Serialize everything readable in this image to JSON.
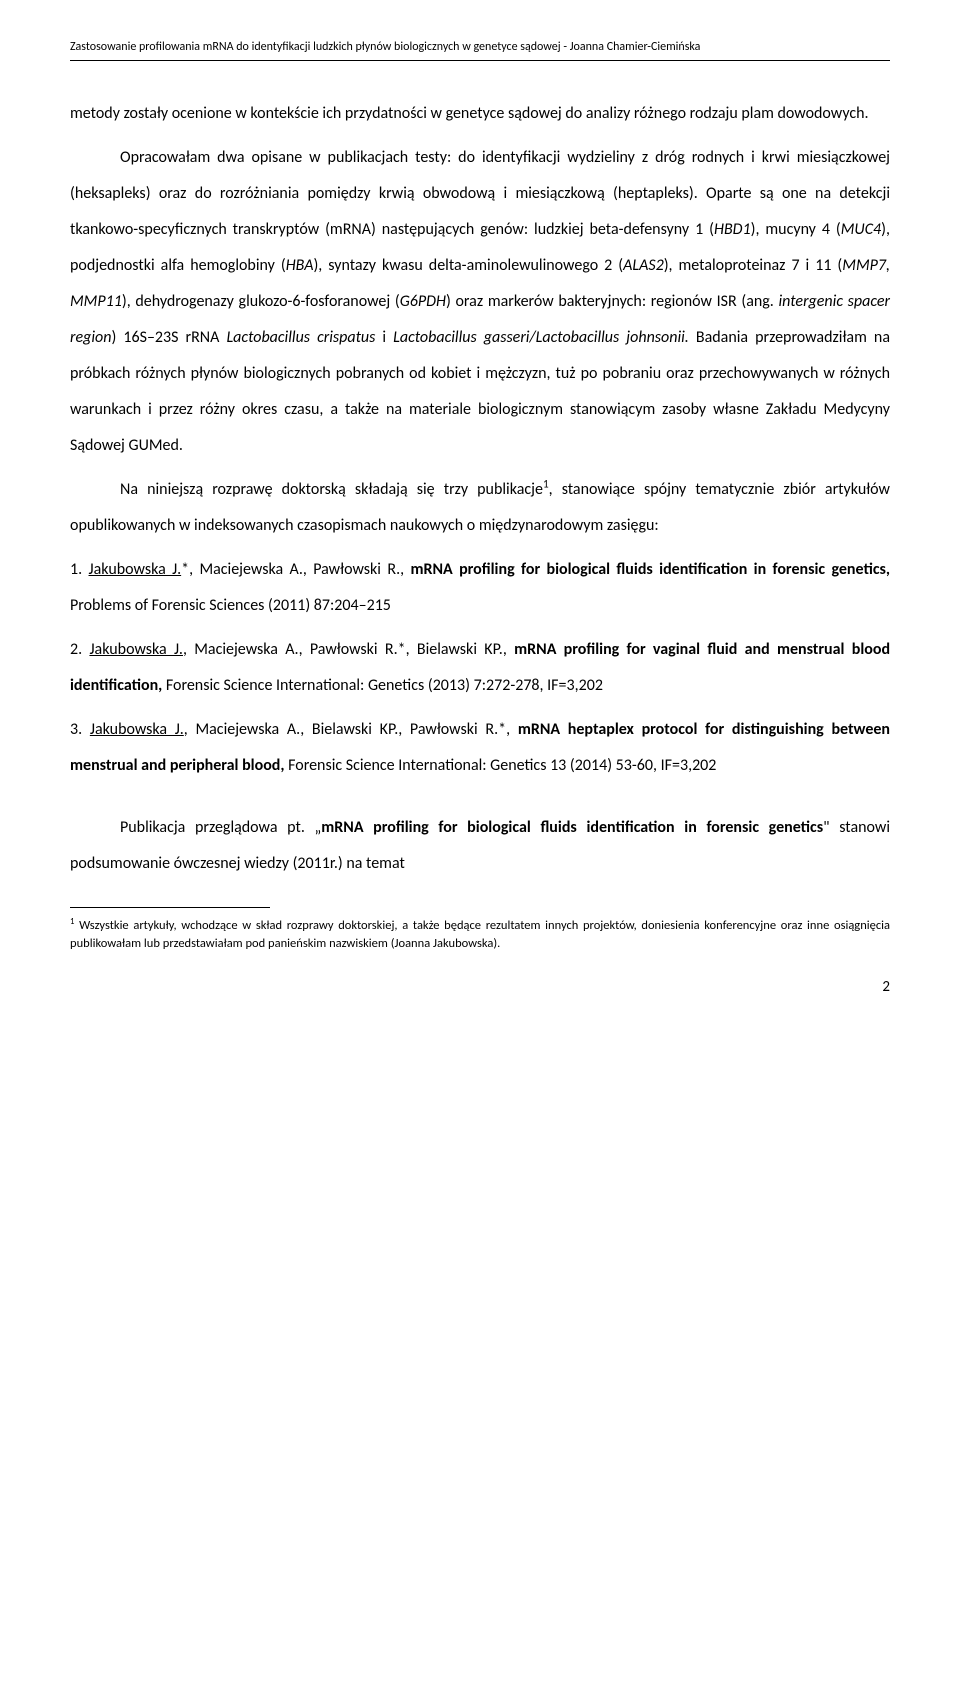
{
  "header": {
    "text": "Zastosowanie profilowania mRNA do identyfikacji ludzkich płynów biologicznych w genetyce sądowej - Joanna Chamier-Ciemińska"
  },
  "paragraphs": {
    "p1_part1": "metody zostały ocenione w kontekście ich przydatności w genetyce sądowej do analizy różnego rodzaju plam dowodowych.",
    "p2_part1": "Opracowałam dwa opisane w publikacjach testy: do identyfikacji wydzieliny z dróg rodnych i krwi miesiączkowej (heksapleks) oraz do rozróżniania pomiędzy krwią obwodową i miesiączkową (heptapleks). Oparte są one na detekcji tkankowo-specyficznych transkryptów (mRNA) następujących genów: ludzkiej beta-defensyny 1 (",
    "p2_hbd1": "HBD1",
    "p2_part2": "), mucyny 4 (",
    "p2_muc4": "MUC4",
    "p2_part3": "), podjednostki alfa hemoglobiny (",
    "p2_hba": "HBA",
    "p2_part4": "), syntazy kwasu delta-aminolewulinowego 2 (",
    "p2_alas2": "ALAS2",
    "p2_part5": "), metaloproteinaz 7 i 11 (",
    "p2_mmp": "MMP7, MMP11",
    "p2_part6": "), dehydrogenazy glukozo-6-fosforanowej (",
    "p2_g6pdh": "G6PDH",
    "p2_part7": ") oraz markerów bakteryjnych: regionów ISR (ang. ",
    "p2_isr": "intergenic spacer region",
    "p2_part8": ") 16S–23S rRNA ",
    "p2_lacto1": "Lactobacillus crispatus",
    "p2_part9": " i ",
    "p2_lacto2": "Lactobacillus gasseri/Lactobacillus johnsonii.",
    "p2_part10": " Badania przeprowadziłam na próbkach różnych płynów biologicznych pobranych od kobiet i mężczyzn, tuż po pobraniu oraz przechowywanych w różnych warunkach i przez różny okres czasu, a także na materiale biologicznym stanowiącym zasoby własne Zakładu Medycyny Sądowej GUMed.",
    "p3_part1": "Na niniejszą rozprawę doktorską składają się trzy publikacje",
    "p3_part2": ", stanowiące spójny tematycznie zbiór artykułów opublikowanych w indeksowanych czasopismach naukowych o międzynarodowym zasięgu:",
    "ref1_num": "1. ",
    "ref1_author": "Jakubowska J.",
    "ref1_rest": "*, Maciejewska A., Pawłowski R., ",
    "ref1_title": "mRNA profiling for biological fluids identification in forensic genetics,",
    "ref1_journal": " Problems of Forensic Sciences (2011) 87:204–215",
    "ref2_num": "2. ",
    "ref2_author": "Jakubowska J.",
    "ref2_rest": ", Maciejewska A., Pawłowski R.*, Bielawski KP., ",
    "ref2_title": "mRNA profiling for vaginal fluid and menstrual blood identification,",
    "ref2_journal": " Forensic Science International: Genetics (2013) 7:272-278, IF=3,202",
    "ref3_num": "3. ",
    "ref3_author": "Jakubowska J.",
    "ref3_rest": ", Maciejewska A., Bielawski KP., Pawłowski R.*, ",
    "ref3_title": "mRNA heptaplex protocol for distinguishing between menstrual and peripheral blood,",
    "ref3_journal": " Forensic Science International: Genetics 13 (2014) 53-60, IF=3,202",
    "p4_part1": "Publikacja przeglądowa pt. „",
    "p4_title": "mRNA profiling for biological fluids identification in forensic genetics",
    "p4_part2": "\" stanowi podsumowanie ówczesnej wiedzy (2011r.) na temat"
  },
  "footnote": {
    "marker": "1",
    "text": " Wszystkie artykuły, wchodzące w skład rozprawy doktorskiej, a także będące rezultatem innych projektów, doniesienia konferencyjne oraz inne osiągnięcia publikowałam lub przedstawiałam pod panieńskim nazwiskiem (Joanna Jakubowska)."
  },
  "pageNumber": "2"
}
